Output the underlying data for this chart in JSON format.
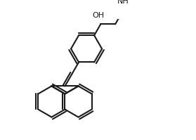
{
  "bg_color": "#ffffff",
  "line_color": "#1a1a1a",
  "line_width": 1.5,
  "font_size_oh": 8,
  "font_size_nh": 8,
  "oh_label": "OH",
  "nh_label": "NH",
  "fig_width": 2.79,
  "fig_height": 1.99,
  "dpi": 100,
  "xlim": [
    0,
    10
  ],
  "ylim": [
    0,
    7
  ]
}
